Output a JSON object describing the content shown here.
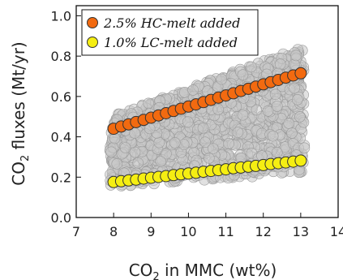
{
  "chart_data": {
    "type": "scatter",
    "title": "",
    "xlabel": {
      "pre": "CO",
      "sub": "2",
      "post": " in MMC (wt%)"
    },
    "ylabel": {
      "pre": "CO",
      "sub": "2",
      "post": " fluxes (Mt/yr)"
    },
    "xlim": [
      7,
      14
    ],
    "ylim": [
      0,
      1.05
    ],
    "xticks": [
      7,
      8,
      9,
      10,
      11,
      12,
      13,
      14
    ],
    "yticks": [
      0.0,
      0.2,
      0.4,
      0.6,
      0.8,
      1.0
    ],
    "xtick_labels": [
      "7",
      "8",
      "9",
      "10",
      "11",
      "12",
      "13",
      "14"
    ],
    "ytick_labels": [
      "0.0",
      "0.2",
      "0.4",
      "0.6",
      "0.8",
      "1.0"
    ],
    "grid": false,
    "legend_position": "top-left",
    "series": [
      {
        "name": "2.5% HC-melt added",
        "color": "#f26a10",
        "x": [
          8.0,
          8.2,
          8.4,
          8.6,
          8.8,
          9.0,
          9.2,
          9.4,
          9.6,
          9.8,
          10.0,
          10.2,
          10.4,
          10.6,
          10.8,
          11.0,
          11.2,
          11.4,
          11.6,
          11.8,
          12.0,
          12.2,
          12.4,
          12.6,
          12.8,
          13.0
        ],
        "y": [
          0.44,
          0.451,
          0.462,
          0.473,
          0.484,
          0.495,
          0.506,
          0.517,
          0.528,
          0.539,
          0.55,
          0.561,
          0.572,
          0.583,
          0.594,
          0.605,
          0.616,
          0.627,
          0.638,
          0.649,
          0.66,
          0.671,
          0.682,
          0.693,
          0.704,
          0.715
        ]
      },
      {
        "name": "1.0% LC-melt added",
        "color": "#f5ee12",
        "x": [
          8.0,
          8.2,
          8.4,
          8.6,
          8.8,
          9.0,
          9.2,
          9.4,
          9.6,
          9.8,
          10.0,
          10.2,
          10.4,
          10.6,
          10.8,
          11.0,
          11.2,
          11.4,
          11.6,
          11.8,
          12.0,
          12.2,
          12.4,
          12.6,
          12.8,
          13.0
        ],
        "y": [
          0.176,
          0.18,
          0.184,
          0.188,
          0.193,
          0.197,
          0.201,
          0.205,
          0.21,
          0.214,
          0.218,
          0.222,
          0.227,
          0.231,
          0.235,
          0.239,
          0.244,
          0.248,
          0.252,
          0.256,
          0.26,
          0.265,
          0.269,
          0.273,
          0.277,
          0.282
        ]
      }
    ],
    "background_cloud": {
      "color": "#c8c8c8",
      "edge_color": "#9a9a9a",
      "x_range": [
        7.9,
        13.1
      ],
      "y_bottom": {
        "at_x_min": 0.15,
        "at_x_max": 0.22
      },
      "y_top": {
        "at_x_min": 0.5,
        "at_x_max": 0.85
      },
      "count": 1400
    }
  }
}
